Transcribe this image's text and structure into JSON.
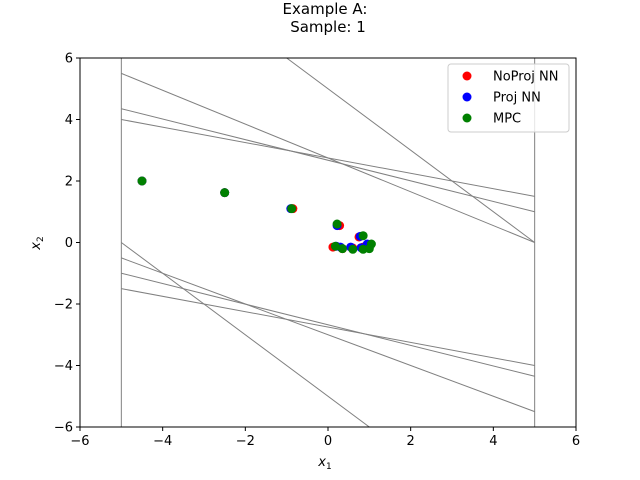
{
  "chart_data": {
    "type": "scatter",
    "title_line1": "Example A:",
    "title_line2": "Sample: 1",
    "xlabel": "x",
    "xlabel_sub": "1",
    "ylabel": "x",
    "ylabel_sub": "2",
    "xlim": [
      -6,
      6
    ],
    "ylim": [
      -6,
      6
    ],
    "xticks": [
      -6,
      -4,
      -2,
      0,
      2,
      4,
      6
    ],
    "yticks": [
      -6,
      -4,
      -2,
      0,
      2,
      4,
      6
    ],
    "xtick_labels": [
      "−6",
      "−4",
      "−2",
      "0",
      "2",
      "4",
      "6"
    ],
    "ytick_labels": [
      "−6",
      "−4",
      "−2",
      "0",
      "2",
      "4",
      "6"
    ],
    "legend_position": "top-right",
    "constraint_lines": [
      {
        "x1": -5,
        "y1": 5.5,
        "x2": 5,
        "y2": 0
      },
      {
        "x1": -5,
        "y1": 4.35,
        "x2": 5,
        "y2": 1.0
      },
      {
        "x1": -5,
        "y1": 4.0,
        "x2": 5,
        "y2": 1.5
      },
      {
        "x1": -1,
        "y1": 6,
        "x2": 5,
        "y2": 0
      },
      {
        "x1": -5,
        "y1": 0,
        "x2": 1,
        "y2": -6
      },
      {
        "x1": -5,
        "y1": -0.5,
        "x2": 5,
        "y2": -5.5
      },
      {
        "x1": -5,
        "y1": -1.0,
        "x2": 5,
        "y2": -4.35
      },
      {
        "x1": -5,
        "y1": -1.5,
        "x2": 5,
        "y2": -4.0
      },
      {
        "x1": -5,
        "y1": -6,
        "x2": -5,
        "y2": 6
      },
      {
        "x1": 5,
        "y1": -6,
        "x2": 5,
        "y2": 6
      }
    ],
    "series": [
      {
        "name": "NoProj NN",
        "color": "#ff0000",
        "points": [
          [
            -4.5,
            2.0
          ],
          [
            -2.5,
            1.62
          ],
          [
            -0.85,
            1.1
          ],
          [
            0.28,
            0.55
          ],
          [
            0.75,
            0.18
          ],
          [
            0.12,
            -0.15
          ],
          [
            0.35,
            -0.2
          ],
          [
            0.6,
            -0.18
          ],
          [
            0.85,
            -0.15
          ],
          [
            1.0,
            -0.1
          ]
        ]
      },
      {
        "name": "Proj NN",
        "color": "#0000ff",
        "points": [
          [
            -4.5,
            2.0
          ],
          [
            -2.5,
            1.62
          ],
          [
            -0.9,
            1.1
          ],
          [
            0.22,
            0.55
          ],
          [
            0.78,
            0.2
          ],
          [
            0.95,
            -0.05
          ],
          [
            0.3,
            -0.15
          ],
          [
            0.55,
            -0.15
          ],
          [
            0.8,
            -0.17
          ],
          [
            0.2,
            -0.12
          ]
        ]
      },
      {
        "name": "MPC",
        "color": "#008000",
        "points": [
          [
            -4.5,
            2.0
          ],
          [
            -2.5,
            1.62
          ],
          [
            -0.88,
            1.1
          ],
          [
            0.22,
            0.6
          ],
          [
            0.85,
            0.22
          ],
          [
            1.05,
            -0.05
          ],
          [
            1.0,
            -0.2
          ],
          [
            0.85,
            -0.22
          ],
          [
            0.6,
            -0.22
          ],
          [
            0.35,
            -0.2
          ],
          [
            0.18,
            -0.12
          ]
        ]
      }
    ]
  }
}
